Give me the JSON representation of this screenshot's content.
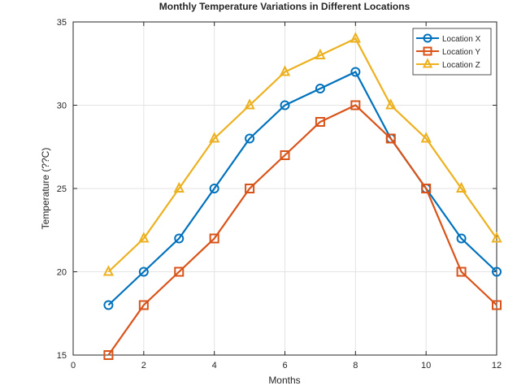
{
  "chart_data": {
    "type": "line",
    "title": "Monthly Temperature Variations in Different Locations",
    "xlabel": "Months",
    "ylabel": "Temperature (??C)",
    "xlim": [
      0,
      12
    ],
    "ylim": [
      15,
      35
    ],
    "xticks": [
      0,
      2,
      4,
      6,
      8,
      10,
      12
    ],
    "yticks": [
      15,
      20,
      25,
      30,
      35
    ],
    "grid": true,
    "legend_position": "top-right",
    "x": [
      1,
      2,
      3,
      4,
      5,
      6,
      7,
      8,
      9,
      10,
      11,
      12
    ],
    "series": [
      {
        "name": "Location X",
        "color": "#0072BD",
        "marker": "circle",
        "values": [
          18,
          20,
          22,
          25,
          28,
          30,
          31,
          32,
          28,
          25,
          22,
          20
        ]
      },
      {
        "name": "Location Y",
        "color": "#D95319",
        "marker": "square",
        "values": [
          15,
          18,
          20,
          22,
          25,
          27,
          29,
          30,
          28,
          25,
          20,
          18
        ]
      },
      {
        "name": "Location Z",
        "color": "#EDB120",
        "marker": "triangle",
        "values": [
          20,
          22,
          25,
          28,
          30,
          32,
          33,
          34,
          30,
          28,
          25,
          22
        ]
      }
    ]
  }
}
